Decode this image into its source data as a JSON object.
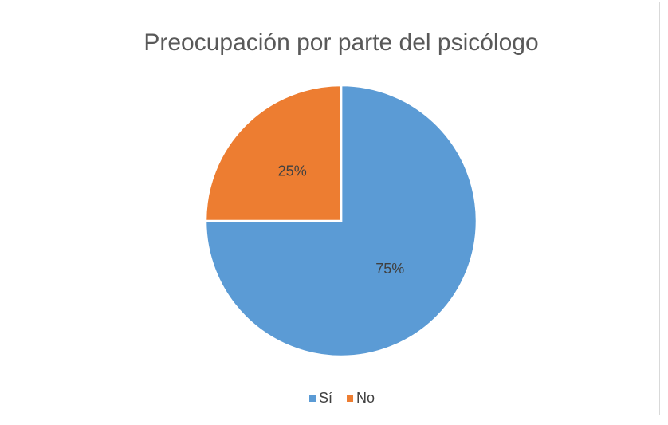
{
  "chart_data": {
    "type": "pie",
    "title": "Preocupación por parte del psicólogo",
    "categories": [
      "Sí",
      "No"
    ],
    "values": [
      75,
      25
    ],
    "value_labels": [
      "75%",
      "25%"
    ],
    "colors": [
      "#5b9bd5",
      "#ed7d31"
    ],
    "legend": "bottom"
  }
}
